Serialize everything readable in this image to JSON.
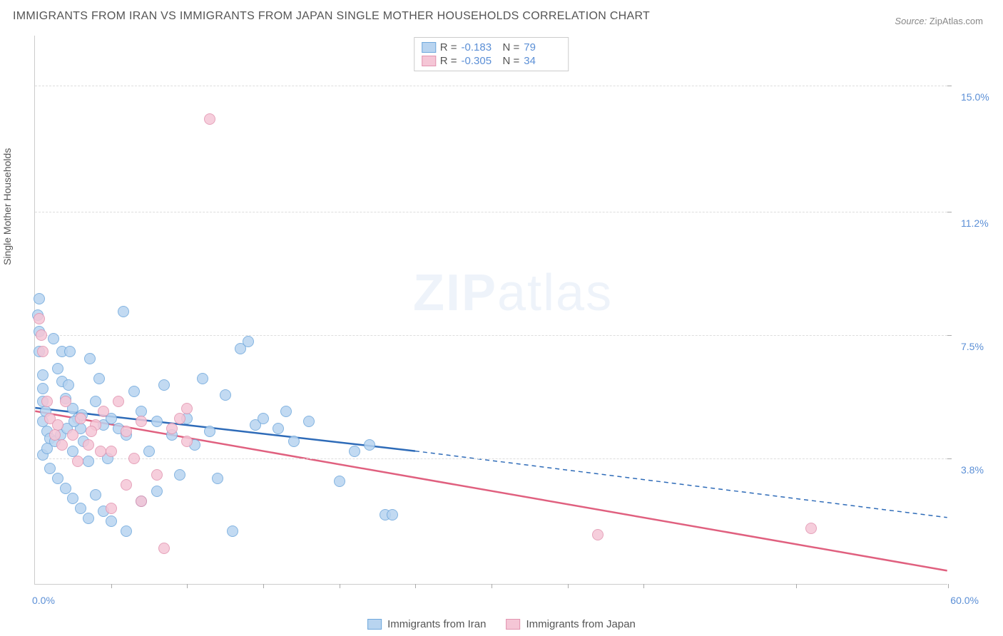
{
  "title": "IMMIGRANTS FROM IRAN VS IMMIGRANTS FROM JAPAN SINGLE MOTHER HOUSEHOLDS CORRELATION CHART",
  "source_label": "Source:",
  "source_value": "ZipAtlas.com",
  "ylabel": "Single Mother Households",
  "watermark_bold": "ZIP",
  "watermark_light": "atlas",
  "chart": {
    "type": "scatter",
    "background_color": "#ffffff",
    "grid_color": "#dddddd",
    "axis_color": "#cccccc",
    "label_color": "#555555",
    "tick_color": "#5b8fd6",
    "xlim": [
      0.0,
      60.0
    ],
    "ylim": [
      0.0,
      16.5
    ],
    "xlim_labels": [
      "0.0%",
      "60.0%"
    ],
    "ytick_values": [
      3.8,
      7.5,
      11.2,
      15.0
    ],
    "ytick_labels": [
      "3.8%",
      "7.5%",
      "11.2%",
      "15.0%"
    ],
    "xtick_positions": [
      5,
      10,
      15,
      20,
      25,
      30,
      35,
      40,
      50,
      60
    ],
    "marker_radius": 8,
    "title_fontsize": 16,
    "label_fontsize": 14,
    "tick_fontsize": 14
  },
  "series": [
    {
      "name": "Immigrants from Iran",
      "fill_color": "#b8d4f0",
      "stroke_color": "#6fa8dc",
      "line_color": "#2e6bb8",
      "r_label": "R =",
      "r_value": "-0.183",
      "n_label": "N =",
      "n_value": "79",
      "trend": {
        "x1": 0,
        "y1": 5.3,
        "x2_solid": 25,
        "y2_solid": 4.0,
        "x2": 60,
        "y2": 2.0
      },
      "points": [
        [
          0.2,
          8.1
        ],
        [
          0.3,
          7.6
        ],
        [
          0.3,
          7.0
        ],
        [
          0.5,
          6.3
        ],
        [
          0.5,
          5.9
        ],
        [
          0.5,
          5.5
        ],
        [
          0.7,
          5.2
        ],
        [
          0.5,
          4.9
        ],
        [
          0.8,
          4.6
        ],
        [
          1.0,
          4.4
        ],
        [
          0.3,
          8.6
        ],
        [
          1.2,
          7.4
        ],
        [
          1.8,
          7.0
        ],
        [
          1.5,
          6.5
        ],
        [
          1.8,
          6.1
        ],
        [
          2.2,
          6.0
        ],
        [
          2.0,
          5.6
        ],
        [
          2.5,
          5.3
        ],
        [
          2.8,
          5.0
        ],
        [
          3.0,
          4.7
        ],
        [
          3.2,
          4.3
        ],
        [
          2.5,
          4.0
        ],
        [
          3.5,
          3.7
        ],
        [
          4.0,
          5.5
        ],
        [
          4.5,
          4.8
        ],
        [
          4.2,
          6.2
        ],
        [
          5.0,
          5.0
        ],
        [
          5.5,
          4.7
        ],
        [
          5.8,
          8.2
        ],
        [
          6.5,
          5.8
        ],
        [
          6.0,
          4.5
        ],
        [
          7.0,
          5.2
        ],
        [
          7.5,
          4.0
        ],
        [
          8.0,
          4.9
        ],
        [
          8.5,
          6.0
        ],
        [
          9.0,
          4.5
        ],
        [
          9.5,
          3.3
        ],
        [
          10.0,
          5.0
        ],
        [
          10.5,
          4.2
        ],
        [
          11.0,
          6.2
        ],
        [
          11.5,
          4.6
        ],
        [
          12.0,
          3.2
        ],
        [
          12.5,
          5.7
        ],
        [
          13.0,
          1.6
        ],
        [
          13.5,
          7.1
        ],
        [
          14.0,
          7.3
        ],
        [
          14.5,
          4.8
        ],
        [
          15.0,
          5.0
        ],
        [
          16.0,
          4.7
        ],
        [
          16.5,
          5.2
        ],
        [
          17.0,
          4.3
        ],
        [
          18.0,
          4.9
        ],
        [
          20.0,
          3.1
        ],
        [
          21.0,
          4.0
        ],
        [
          22.0,
          4.2
        ],
        [
          23.0,
          2.1
        ],
        [
          23.5,
          2.1
        ],
        [
          0.5,
          3.9
        ],
        [
          1.0,
          3.5
        ],
        [
          1.5,
          3.2
        ],
        [
          2.0,
          2.9
        ],
        [
          2.5,
          2.6
        ],
        [
          3.0,
          2.3
        ],
        [
          3.5,
          2.0
        ],
        [
          4.0,
          2.7
        ],
        [
          4.5,
          2.2
        ],
        [
          5.0,
          1.9
        ],
        [
          6.0,
          1.6
        ],
        [
          7.0,
          2.5
        ],
        [
          8.0,
          2.8
        ],
        [
          2.3,
          7.0
        ],
        [
          3.6,
          6.8
        ],
        [
          0.8,
          4.1
        ],
        [
          1.3,
          4.3
        ],
        [
          1.7,
          4.5
        ],
        [
          2.1,
          4.7
        ],
        [
          2.6,
          4.9
        ],
        [
          3.1,
          5.1
        ],
        [
          4.8,
          3.8
        ]
      ]
    },
    {
      "name": "Immigrants from Japan",
      "fill_color": "#f5c6d6",
      "stroke_color": "#e294b0",
      "line_color": "#e0607f",
      "r_label": "R =",
      "r_value": "-0.305",
      "n_label": "N =",
      "n_value": "34",
      "trend": {
        "x1": 0,
        "y1": 5.2,
        "x2_solid": 60,
        "y2_solid": 0.4,
        "x2": 60,
        "y2": 0.4
      },
      "points": [
        [
          0.3,
          8.0
        ],
        [
          0.4,
          7.5
        ],
        [
          0.5,
          7.0
        ],
        [
          0.8,
          5.5
        ],
        [
          1.0,
          5.0
        ],
        [
          1.5,
          4.8
        ],
        [
          2.0,
          5.5
        ],
        [
          2.5,
          4.5
        ],
        [
          3.0,
          5.0
        ],
        [
          3.5,
          4.2
        ],
        [
          4.0,
          4.8
        ],
        [
          4.5,
          5.2
        ],
        [
          5.0,
          4.0
        ],
        [
          5.5,
          5.5
        ],
        [
          6.0,
          4.6
        ],
        [
          6.5,
          3.8
        ],
        [
          7.0,
          4.9
        ],
        [
          8.5,
          1.1
        ],
        [
          9.0,
          4.7
        ],
        [
          9.5,
          5.0
        ],
        [
          10.0,
          4.3
        ],
        [
          5.0,
          2.3
        ],
        [
          6.0,
          3.0
        ],
        [
          7.0,
          2.5
        ],
        [
          8.0,
          3.3
        ],
        [
          10.0,
          5.3
        ],
        [
          3.7,
          4.6
        ],
        [
          4.3,
          4.0
        ],
        [
          1.3,
          4.5
        ],
        [
          1.8,
          4.2
        ],
        [
          11.5,
          14.0
        ],
        [
          37.0,
          1.5
        ],
        [
          51.0,
          1.7
        ],
        [
          2.8,
          3.7
        ]
      ]
    }
  ],
  "bottom_legend": [
    {
      "label": "Immigrants from Iran",
      "fill": "#b8d4f0",
      "stroke": "#6fa8dc"
    },
    {
      "label": "Immigrants from Japan",
      "fill": "#f5c6d6",
      "stroke": "#e294b0"
    }
  ]
}
